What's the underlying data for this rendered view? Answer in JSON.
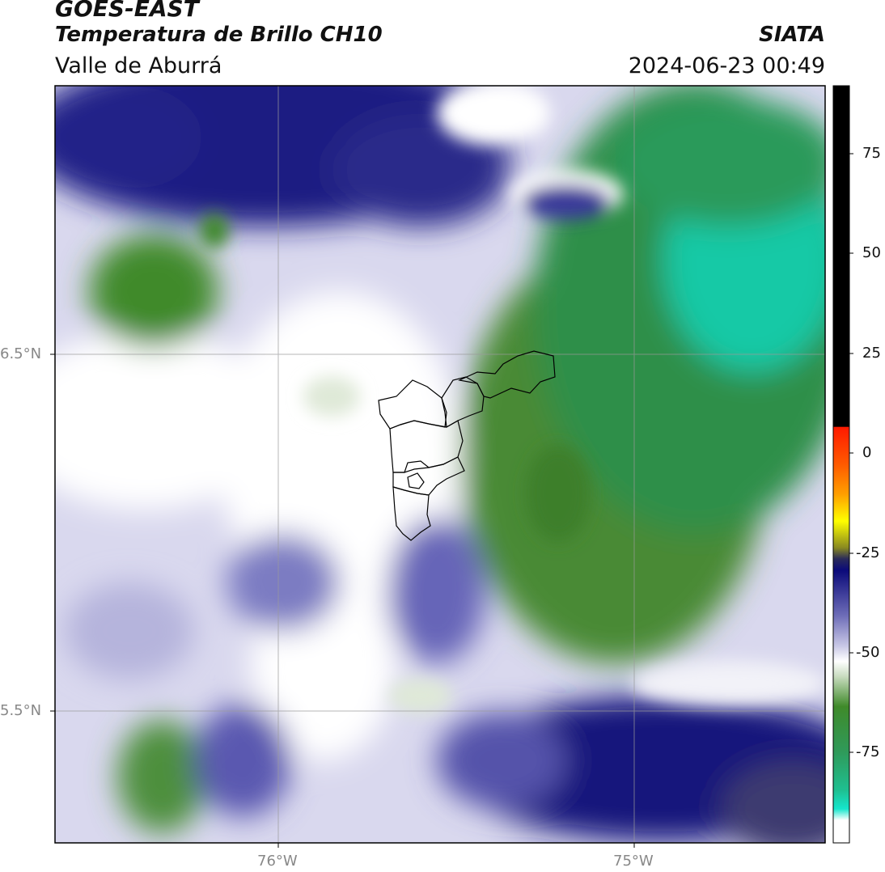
{
  "header": {
    "satellite": "GOES-EAST",
    "product": "Temperatura de Brillo CH10",
    "region": "Valle de Aburrá",
    "organization": "SIATA",
    "timestamp": "2024-06-23 00:49"
  },
  "axes": {
    "lon_labels": [
      "76°W",
      "75°W"
    ],
    "lat_labels": [
      "6.5°N",
      "5.5°N"
    ]
  },
  "colorbar": {
    "tick_labels": [
      "75",
      "50",
      "25",
      "0",
      "-25",
      "-50",
      "-75"
    ],
    "colors": {
      "black": "#000000",
      "red": "#ff1a00",
      "orange": "#ff8c00",
      "yellow": "#ffff00",
      "navy": "#0b0a7a",
      "lavender": "#c9c8e6",
      "white": "#ffffff",
      "green": "#3f8a2a",
      "teal": "#15d6b8"
    }
  },
  "map_features": {
    "gridlines": true,
    "boundary": "Valle de Aburrá municipalities outline"
  }
}
